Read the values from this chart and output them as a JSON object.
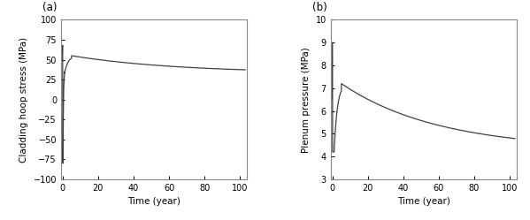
{
  "fig_width": 5.99,
  "fig_height": 2.49,
  "dpi": 100,
  "background_color": "#ffffff",
  "panel_a": {
    "label": "(a)",
    "xlabel": "Time (year)",
    "ylabel": "Cladding hoop stress (MPa)",
    "xlim": [
      -1,
      104
    ],
    "ylim": [
      -100,
      100
    ],
    "xticks": [
      0,
      20,
      40,
      60,
      80,
      100
    ],
    "yticks": [
      -100,
      -75,
      -50,
      -25,
      0,
      25,
      50,
      75,
      100
    ],
    "line_color": "#404040",
    "line_width": 0.9
  },
  "panel_b": {
    "label": "(b)",
    "xlabel": "Time (year)",
    "ylabel": "Plenum pressure (MPa)",
    "xlim": [
      -1,
      104
    ],
    "ylim": [
      3,
      10
    ],
    "xticks": [
      0,
      20,
      40,
      60,
      80,
      100
    ],
    "yticks": [
      3,
      4,
      5,
      6,
      7,
      8,
      9,
      10
    ],
    "line_color": "#404040",
    "line_width": 0.9
  }
}
